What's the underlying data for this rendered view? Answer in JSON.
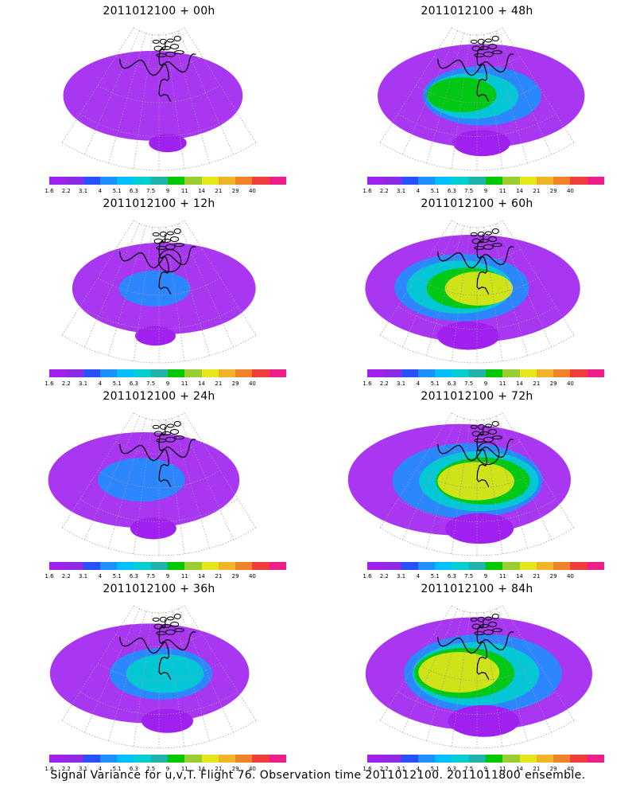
{
  "panels": [
    {
      "title": "2011012100 + 00h",
      "lead_hours": 0,
      "observation_circle": false,
      "intensity": 0.25
    },
    {
      "title": "2011012100 + 48h",
      "lead_hours": 48,
      "observation_circle": false,
      "intensity": 0.6
    },
    {
      "title": "2011012100 + 12h",
      "lead_hours": 12,
      "observation_circle": true,
      "intensity": 0.3
    },
    {
      "title": "2011012100 + 60h",
      "lead_hours": 60,
      "observation_circle": false,
      "intensity": 0.7
    },
    {
      "title": "2011012100 + 24h",
      "lead_hours": 24,
      "observation_circle": false,
      "intensity": 0.4
    },
    {
      "title": "2011012100 + 72h",
      "lead_hours": 72,
      "observation_circle": true,
      "intensity": 0.8
    },
    {
      "title": "2011012100 + 36h",
      "lead_hours": 36,
      "observation_circle": false,
      "intensity": 0.5
    },
    {
      "title": "2011012100 + 84h",
      "lead_hours": 84,
      "observation_circle": false,
      "intensity": 0.85
    }
  ],
  "colorbar": {
    "labels": [
      "1.6",
      "2.2",
      "3.1",
      "4",
      "5.1",
      "6.3",
      "7.5",
      "9",
      "11",
      "14",
      "21",
      "29",
      "40"
    ],
    "colors": [
      "#a020f0",
      "#8c2be2",
      "#2850ff",
      "#1e90ff",
      "#00bfff",
      "#00ced1",
      "#20b2aa",
      "#00c800",
      "#9acd32",
      "#e6e619",
      "#f0b428",
      "#f08228",
      "#f03c3c",
      "#f01e8c"
    ]
  },
  "footer": {
    "caption": "Signal Variance for u,v,T. Flight 76. Observation time 2011012100. 2011011800 ensemble."
  }
}
